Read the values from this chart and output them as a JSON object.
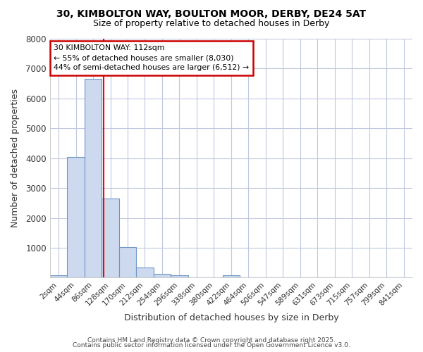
{
  "title1": "30, KIMBOLTON WAY, BOULTON MOOR, DERBY, DE24 5AT",
  "title2": "Size of property relative to detached houses in Derby",
  "xlabel": "Distribution of detached houses by size in Derby",
  "ylabel": "Number of detached properties",
  "bar_color": "#ccd9ee",
  "bar_edge_color": "#7096c8",
  "background_color": "#ffffff",
  "plot_bg_color": "#ffffff",
  "grid_color": "#c0c8e0",
  "bin_labels": [
    "2sqm",
    "44sqm",
    "86sqm",
    "128sqm",
    "170sqm",
    "212sqm",
    "254sqm",
    "296sqm",
    "338sqm",
    "380sqm",
    "422sqm",
    "464sqm",
    "506sqm",
    "547sqm",
    "589sqm",
    "631sqm",
    "673sqm",
    "715sqm",
    "757sqm",
    "799sqm",
    "841sqm"
  ],
  "bin_values": [
    80,
    4050,
    6650,
    2650,
    1020,
    330,
    130,
    80,
    0,
    0,
    80,
    0,
    0,
    0,
    0,
    0,
    0,
    0,
    0,
    0,
    0
  ],
  "red_line_x": 2.62,
  "ylim": [
    0,
    8000
  ],
  "yticks": [
    0,
    1000,
    2000,
    3000,
    4000,
    5000,
    6000,
    7000,
    8000
  ],
  "annotation_text": "30 KIMBOLTON WAY: 112sqm\n← 55% of detached houses are smaller (8,030)\n44% of semi-detached houses are larger (6,512) →",
  "annotation_box_color": "#ffffff",
  "annotation_box_edge_color": "#cc0000",
  "footer1": "Contains HM Land Registry data © Crown copyright and database right 2025.",
  "footer2": "Contains public sector information licensed under the Open Government Licence v3.0."
}
